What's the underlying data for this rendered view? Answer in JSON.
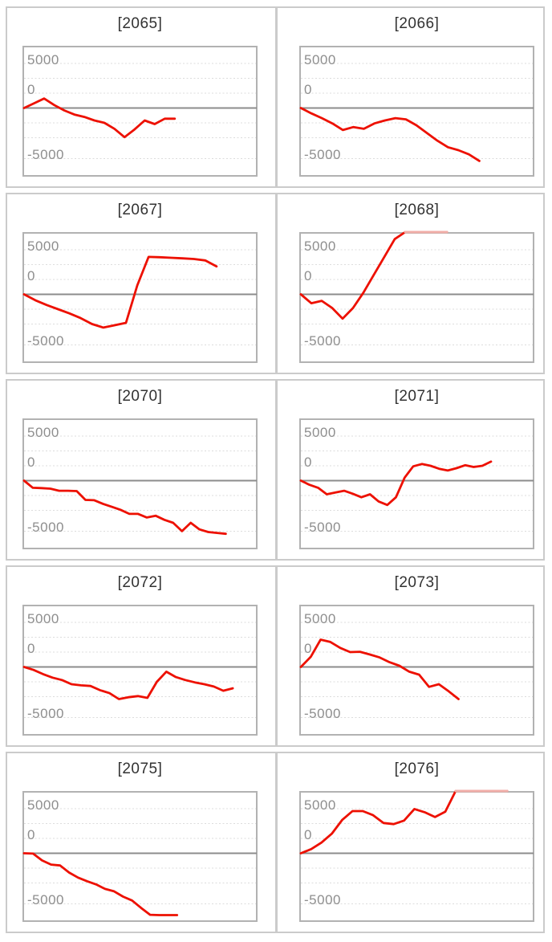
{
  "chart_data": {
    "type": "line",
    "grid": {
      "rows": 5,
      "cols": 2
    },
    "y_axis": {
      "tick_labels": [
        "5000",
        "0",
        "-5000"
      ],
      "tick_values": [
        5000,
        0,
        -5000
      ],
      "view_range": [
        -11250,
        10200
      ],
      "gridlines_dashed": true,
      "zero_axis_solid": true
    },
    "colors": {
      "line": "#ed1000",
      "line_clipped": "#f1aea8",
      "zero_line": "#8c8c8c",
      "gridline": "#dcdcdc",
      "plot_border": "#b2b2b2",
      "panel_border": "#cbcbcb",
      "title_text": "#323232",
      "tick_text": "#8e8e8e",
      "background": "#ffffff"
    },
    "charts": [
      {
        "title": "[2065]",
        "x_end_fraction": 0.65,
        "values": [
          0,
          800,
          1600,
          500,
          -400,
          -1100,
          -1500,
          -2100,
          -2500,
          -3500,
          -4900,
          -3600,
          -2100,
          -2700,
          -1800,
          -1800
        ]
      },
      {
        "title": "[2066]",
        "x_end_fraction": 0.77,
        "values": [
          0,
          -900,
          -1700,
          -2600,
          -3700,
          -3200,
          -3500,
          -2600,
          -2100,
          -1700,
          -1900,
          -2900,
          -4200,
          -5500,
          -6600,
          -7100,
          -7800,
          -8900
        ]
      },
      {
        "title": "[2067]",
        "x_end_fraction": 0.83,
        "values": [
          0,
          -1000,
          -1800,
          -2500,
          -3200,
          -4000,
          -5000,
          -5600,
          -5200,
          -4800,
          1500,
          6300,
          6250,
          6150,
          6050,
          5950,
          5700,
          4700
        ]
      },
      {
        "title": "[2068]",
        "x_end_fraction": 0.63,
        "values": [
          0,
          -1500,
          -1100,
          -2300,
          -4100,
          -2300,
          300,
          3300,
          6300,
          9300,
          10500,
          10500,
          10500,
          10500,
          10500
        ]
      },
      {
        "title": "[2070]",
        "x_end_fraction": 0.87,
        "values": [
          0,
          -1200,
          -1250,
          -1350,
          -1700,
          -1700,
          -1750,
          -3250,
          -3300,
          -3900,
          -4400,
          -4900,
          -5600,
          -5600,
          -6200,
          -5900,
          -6600,
          -7100,
          -8500,
          -7100,
          -8200,
          -8650,
          -8800,
          -8950
        ]
      },
      {
        "title": "[2071]",
        "x_end_fraction": 0.82,
        "values": [
          0,
          -700,
          -1200,
          -2300,
          -2000,
          -1700,
          -2200,
          -2800,
          -2300,
          -3500,
          -4100,
          -2800,
          500,
          2400,
          2800,
          2500,
          2000,
          1700,
          2100,
          2600,
          2300,
          2500,
          3200
        ]
      },
      {
        "title": "[2072]",
        "x_end_fraction": 0.9,
        "values": [
          0,
          -500,
          -1200,
          -1800,
          -2200,
          -2900,
          -3100,
          -3200,
          -3900,
          -4400,
          -5400,
          -5100,
          -4900,
          -5200,
          -2500,
          -800,
          -1700,
          -2200,
          -2600,
          -2900,
          -3300,
          -4000,
          -3600
        ]
      },
      {
        "title": "[2073]",
        "x_end_fraction": 0.68,
        "values": [
          0,
          1700,
          4600,
          4200,
          3200,
          2500,
          2550,
          2100,
          1600,
          800,
          200,
          -800,
          -1300,
          -3350,
          -2900,
          -4100,
          -5400
        ]
      },
      {
        "title": "[2075]",
        "x_end_fraction": 0.66,
        "values": [
          0,
          -50,
          -1200,
          -1900,
          -2050,
          -3250,
          -4100,
          -4700,
          -5250,
          -6000,
          -6400,
          -7300,
          -7950,
          -9200,
          -10350,
          -10400,
          -10400,
          -10400
        ]
      },
      {
        "title": "[2076]",
        "x_end_fraction": 0.89,
        "values": [
          0,
          700,
          1800,
          3300,
          5600,
          7100,
          7100,
          6400,
          5100,
          4900,
          5500,
          7450,
          6900,
          6100,
          7000,
          10500,
          10500,
          10500,
          10500,
          10500,
          10500
        ]
      }
    ]
  }
}
